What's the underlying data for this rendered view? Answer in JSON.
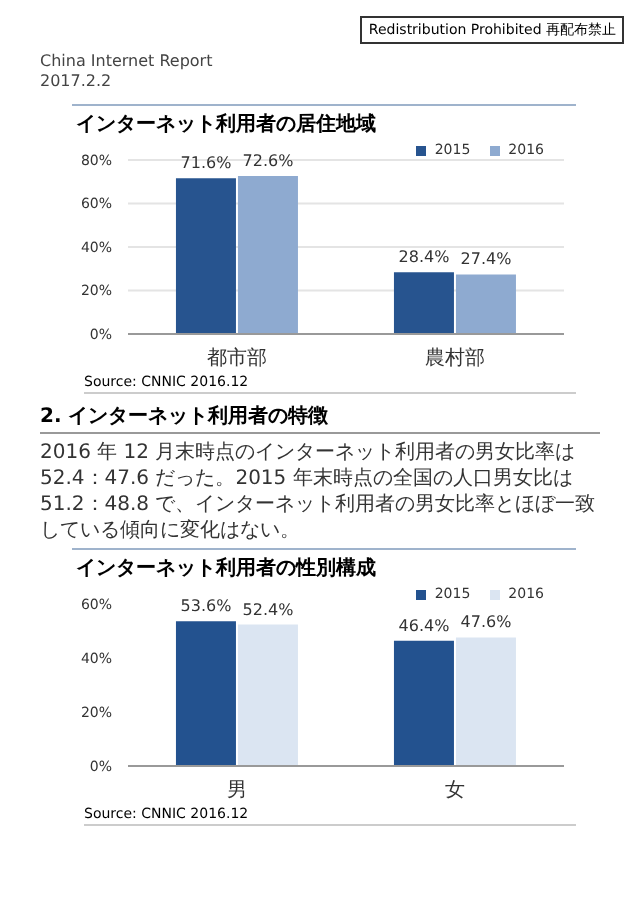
{
  "chart_data": [
    {
      "type": "bar",
      "title": "インターネット利用者の居住地域",
      "categories": [
        "都市部",
        "農村部"
      ],
      "series": [
        {
          "name": "2015",
          "color": "#27548f",
          "values": [
            71.6,
            28.4
          ],
          "value_labels": [
            "71.6%",
            "28.4%"
          ]
        },
        {
          "name": "2016",
          "color": "#8eaad0",
          "values": [
            72.6,
            27.4
          ],
          "value_labels": [
            "72.6%",
            "27.4%"
          ]
        }
      ],
      "ylim": [
        0,
        80
      ],
      "yticks": [
        {
          "value": 0,
          "label": "0%"
        },
        {
          "value": 20,
          "label": "20%"
        },
        {
          "value": 40,
          "label": "40%"
        },
        {
          "value": 60,
          "label": "60%"
        },
        {
          "value": 80,
          "label": "80%"
        }
      ],
      "grid": "y",
      "legend": "top right",
      "annotations": [
        "Redistribution Prohibited 再配布禁止",
        "China Internet Report",
        "2017.2.2",
        "Source: CNNIC    2016.12"
      ]
    },
    {
      "type": "bar",
      "title": "インターネット利用者の性別構成",
      "categories": [
        "男",
        "女"
      ],
      "series": [
        {
          "name": "2015",
          "color": "#23528f",
          "values": [
            53.6,
            46.4
          ],
          "value_labels": [
            "53.6%",
            "46.4%"
          ]
        },
        {
          "name": "2016",
          "color": "#dbe5f2",
          "values": [
            52.4,
            47.6
          ],
          "value_labels": [
            "52.4%",
            "47.6%"
          ]
        }
      ],
      "ylim": [
        0,
        60
      ],
      "yticks": [
        {
          "value": 0,
          "label": "0%"
        },
        {
          "value": 20,
          "label": "20%"
        },
        {
          "value": 40,
          "label": "40%"
        },
        {
          "value": 60,
          "label": "60%"
        }
      ],
      "legend": "top right",
      "annotations": [
        "2.  インターネット利用者の特徴",
        "2016 年 12 月末時点のインターネット利用者の男女比率は 52.4：47.6 だった。2015 年末時点の全国の人口男女比は 51.2：48.8 で、インターネット利用者の男女比率とほぼ一致している傾向に変化はない。",
        "Source: CNNIC  2016.12"
      ]
    }
  ]
}
